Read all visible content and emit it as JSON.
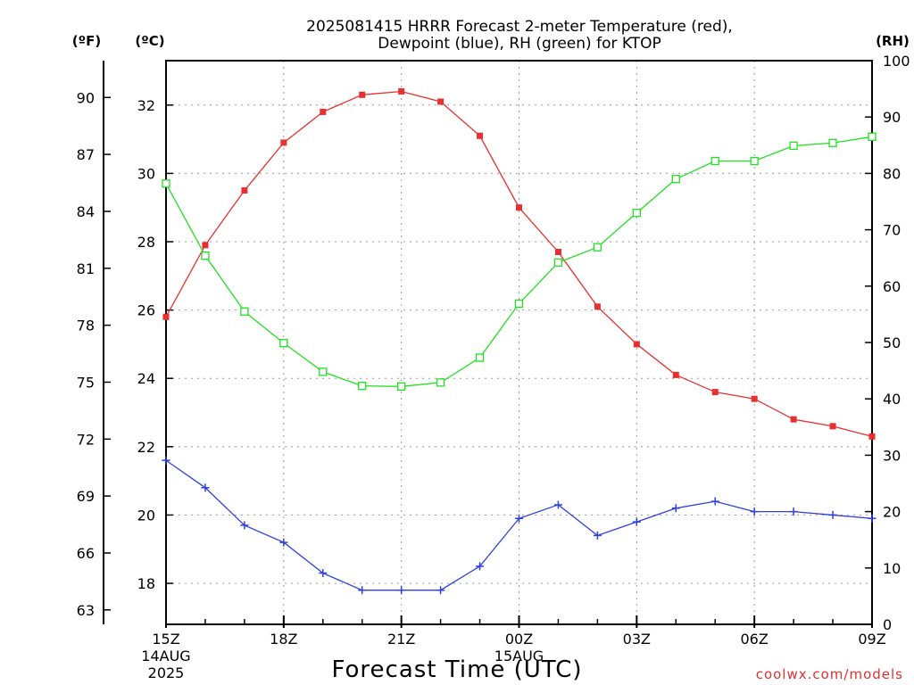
{
  "chart_data": {
    "type": "line",
    "title": "2025081415 HRRR Forecast 2-meter Temperature (red),",
    "subtitle": "Dewpoint (blue), RH (green) for KTOP",
    "xlabel": "Forecast Time (UTC)",
    "units": {
      "fahrenheit": "(ºF)",
      "celsius": "(ºC)",
      "rh": "(RH)"
    },
    "x": [
      "15Z",
      "16Z",
      "17Z",
      "18Z",
      "19Z",
      "20Z",
      "21Z",
      "22Z",
      "23Z",
      "00Z",
      "01Z",
      "02Z",
      "03Z",
      "04Z",
      "05Z",
      "06Z",
      "07Z",
      "08Z",
      "09Z"
    ],
    "x_tick_labels": [
      {
        "index": 0,
        "lines": [
          "15Z",
          "14AUG",
          "2025"
        ]
      },
      {
        "index": 3,
        "lines": [
          "18Z"
        ]
      },
      {
        "index": 6,
        "lines": [
          "21Z"
        ]
      },
      {
        "index": 9,
        "lines": [
          "00Z",
          "15AUG"
        ]
      },
      {
        "index": 12,
        "lines": [
          "03Z"
        ]
      },
      {
        "index": 15,
        "lines": [
          "06Z"
        ]
      },
      {
        "index": 18,
        "lines": [
          "09Z"
        ]
      }
    ],
    "ylim_celsius": [
      16.8,
      33.3
    ],
    "y_ticks_celsius": [
      18,
      20,
      22,
      24,
      26,
      28,
      30,
      32
    ],
    "y_ticks_fahrenheit": [
      63,
      66,
      69,
      72,
      75,
      78,
      81,
      84,
      87,
      90
    ],
    "ylim_rh": [
      0,
      100
    ],
    "y_ticks_rh": [
      0,
      10,
      20,
      30,
      40,
      50,
      60,
      70,
      80,
      90,
      100
    ],
    "grid": true,
    "series": [
      {
        "axis": "celsius",
        "color": "#e83030",
        "marker": "filled-square",
        "values": [
          25.8,
          27.9,
          29.5,
          30.9,
          31.8,
          32.3,
          32.4,
          32.1,
          31.1,
          29.0,
          27.7,
          26.1,
          25.0,
          24.1,
          23.6,
          23.4,
          22.8,
          22.6,
          22.3
        ]
      },
      {
        "axis": "celsius",
        "color": "#2f3fe0",
        "marker": "plus",
        "values": [
          21.6,
          20.8,
          19.7,
          19.2,
          18.3,
          17.8,
          17.8,
          17.8,
          18.5,
          19.9,
          20.3,
          19.4,
          19.8,
          20.2,
          20.4,
          20.1,
          20.1,
          20.0,
          19.9
        ]
      },
      {
        "axis": "rh",
        "color": "#22e022",
        "marker": "open-square",
        "values": [
          78.2,
          65.4,
          55.5,
          49.9,
          44.8,
          42.3,
          42.2,
          42.9,
          47.3,
          56.9,
          64.2,
          66.9,
          73.0,
          79.0,
          82.2,
          82.2,
          84.9,
          85.4,
          86.5
        ]
      }
    ]
  },
  "credit": "coolwx.com/models"
}
